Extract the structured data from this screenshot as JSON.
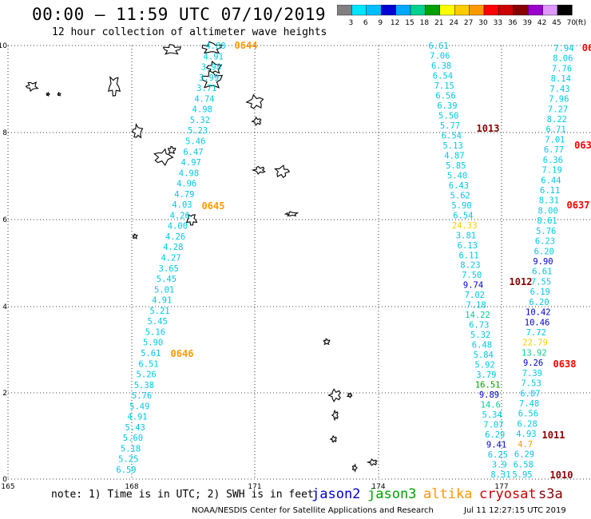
{
  "header": {
    "title": "00:00 – 11:59 UTC 07/10/2019",
    "subtitle": "12 hour collection of altimeter wave heights"
  },
  "colorbar": {
    "labels": [
      "3",
      "6",
      "9",
      "12",
      "15",
      "18",
      "21",
      "24",
      "27",
      "30",
      "33",
      "36",
      "39",
      "42",
      "45",
      "70"
    ],
    "colors": [
      "#808080",
      "#00e5ff",
      "#00bfff",
      "#0000d0",
      "#00a8ff",
      "#00d090",
      "#00a000",
      "#ffff00",
      "#ffcc00",
      "#ff9900",
      "#ff0000",
      "#cc0000",
      "#880000",
      "#9900cc",
      "#dd99ff",
      "#000000"
    ],
    "unit": "(ft)"
  },
  "axes": {
    "x_ticks": [
      "165",
      "168",
      "171",
      "174",
      "177"
    ],
    "y_ticks": [
      "10",
      "8",
      "6",
      "4",
      "2",
      "0"
    ]
  },
  "tracks": [
    {
      "values": [
        "4.88",
        "4.91",
        "3.98",
        "3.99",
        "3.71",
        "4.74",
        "4.98",
        "5.32",
        "5.23",
        "5.46",
        "6.47",
        "4.97",
        "4.98",
        "4.96",
        "4.79",
        "4.03",
        "4.26",
        "4.00",
        "4.26",
        "4.28",
        "4.27",
        "3.65",
        "5.45",
        "5.01",
        "4.91",
        "5.21",
        "5.45",
        "5.16",
        "5.90",
        "5.61",
        "6.51",
        "5.26",
        "5.38",
        "5.76",
        "5.49",
        "4.91",
        "5.43",
        "5.60",
        "5.18",
        "5.25",
        "6.59"
      ],
      "colors": {
        "24.33": "#ffcc00",
        "14.22": "#00d090",
        "16.51": "#00a000",
        "9.74": "#0000d0"
      }
    },
    {
      "values": [
        "6.61",
        "7.06",
        "6.38",
        "6.54",
        "7.15",
        "6.56",
        "6.39",
        "5.50",
        "5.77",
        "6.54",
        "5.13",
        "4.87",
        "5.85",
        "5.40",
        "6.43",
        "5.62",
        "5.90",
        "6.54",
        "24.33",
        "3.81",
        "6.13",
        "6.11",
        "8.23",
        "7.50",
        "9.74",
        "7.02",
        "7.18",
        "14.22",
        "6.73",
        "5.32",
        "6.48",
        "5.84",
        "5.92",
        "3.79",
        "16.51",
        "9.89",
        "14.6",
        "5.34",
        "7.07",
        "6.29",
        "9.41",
        "6.25",
        "3.9",
        "8.31"
      ]
    },
    {
      "values": [
        "7.94",
        "8.06",
        "7.76",
        "8.14",
        "7.43",
        "7.96",
        "7.27",
        "8.22",
        "6.71",
        "7.01",
        "6.77",
        "6.36",
        "7.19",
        "6.44",
        "6.11",
        "8.31",
        "8.00",
        "8.61",
        "5.76",
        "6.23",
        "6.20",
        "9.90",
        "6.61",
        "7.55",
        "6.19",
        "6.20",
        "10.42",
        "10.46",
        "7.72",
        "22.79",
        "13.92",
        "9.26",
        "7.39",
        "7.53",
        "6.07",
        "7.48",
        "6.56",
        "6.28",
        "4.93",
        "4.7",
        "6.29",
        "6.58",
        "5.95"
      ]
    }
  ],
  "pass_labels": [
    {
      "text": "0644",
      "color": "#ff9900"
    },
    {
      "text": "0645",
      "color": "#ff9900"
    },
    {
      "text": "0646",
      "color": "#ff9900"
    },
    {
      "text": "1013",
      "color": "#880000"
    },
    {
      "text": "1012",
      "color": "#880000"
    },
    {
      "text": "1011",
      "color": "#880000"
    },
    {
      "text": "1010",
      "color": "#880000"
    },
    {
      "text": "06",
      "color": "#ff0000"
    },
    {
      "text": "063",
      "color": "#ff0000"
    },
    {
      "text": "0637",
      "color": "#ff0000"
    },
    {
      "text": "0638",
      "color": "#ff0000"
    }
  ],
  "footer": {
    "note": "note: 1) Time is in UTC; 2) SWH is in feet",
    "sat_jason2": "jason2",
    "sat_jason3": "jason3",
    "sat_altika": "altika",
    "sat_cryosat": "cryosat",
    "sat_s3a": "s3a",
    "sat_colors": {
      "jason2": "#0000d0",
      "jason3": "#00a000",
      "altika": "#ff9900",
      "cryosat": "#cc0000",
      "s3a": "#880000"
    },
    "credit": "NOAA/NESDIS Center for Satellite Applications and Research",
    "timestamp": "Jul 11 12:27:15 UTC 2019"
  }
}
